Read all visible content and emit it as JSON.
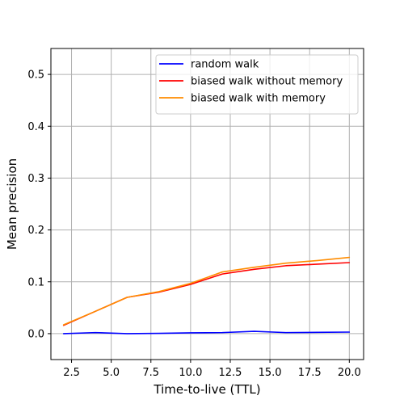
{
  "chart_data": {
    "type": "line",
    "xlabel": "Time-to-live (TTL)",
    "ylabel": "Mean precision",
    "xlim": [
      1.2,
      20.9
    ],
    "ylim": [
      -0.05,
      0.55
    ],
    "xticks": [
      2.5,
      5.0,
      7.5,
      10.0,
      12.5,
      15.0,
      17.5,
      20.0
    ],
    "xtick_labels": [
      "2.5",
      "5.0",
      "7.5",
      "10.0",
      "12.5",
      "15.0",
      "17.5",
      "20.0"
    ],
    "yticks": [
      0.0,
      0.1,
      0.2,
      0.3,
      0.4,
      0.5
    ],
    "ytick_labels": [
      "0.0",
      "0.1",
      "0.2",
      "0.3",
      "0.4",
      "0.5"
    ],
    "grid": true,
    "legend_position": "top-right",
    "x": [
      2,
      4,
      6,
      8,
      10,
      12,
      14,
      16,
      18,
      20
    ],
    "series": [
      {
        "name": "random walk",
        "color": "#0000ff",
        "values": [
          0.0,
          0.002,
          0.0,
          0.0005,
          0.0015,
          0.002,
          0.0045,
          0.002,
          0.0025,
          0.003
        ]
      },
      {
        "name": "biased walk without memory",
        "color": "#ff0000",
        "values": [
          0.016,
          0.043,
          0.07,
          0.08,
          0.095,
          0.115,
          0.124,
          0.131,
          0.134,
          0.137
        ]
      },
      {
        "name": "biased walk with memory",
        "color": "#ff8c00",
        "values": [
          0.017,
          0.043,
          0.07,
          0.081,
          0.097,
          0.119,
          0.128,
          0.136,
          0.141,
          0.147
        ]
      }
    ]
  }
}
